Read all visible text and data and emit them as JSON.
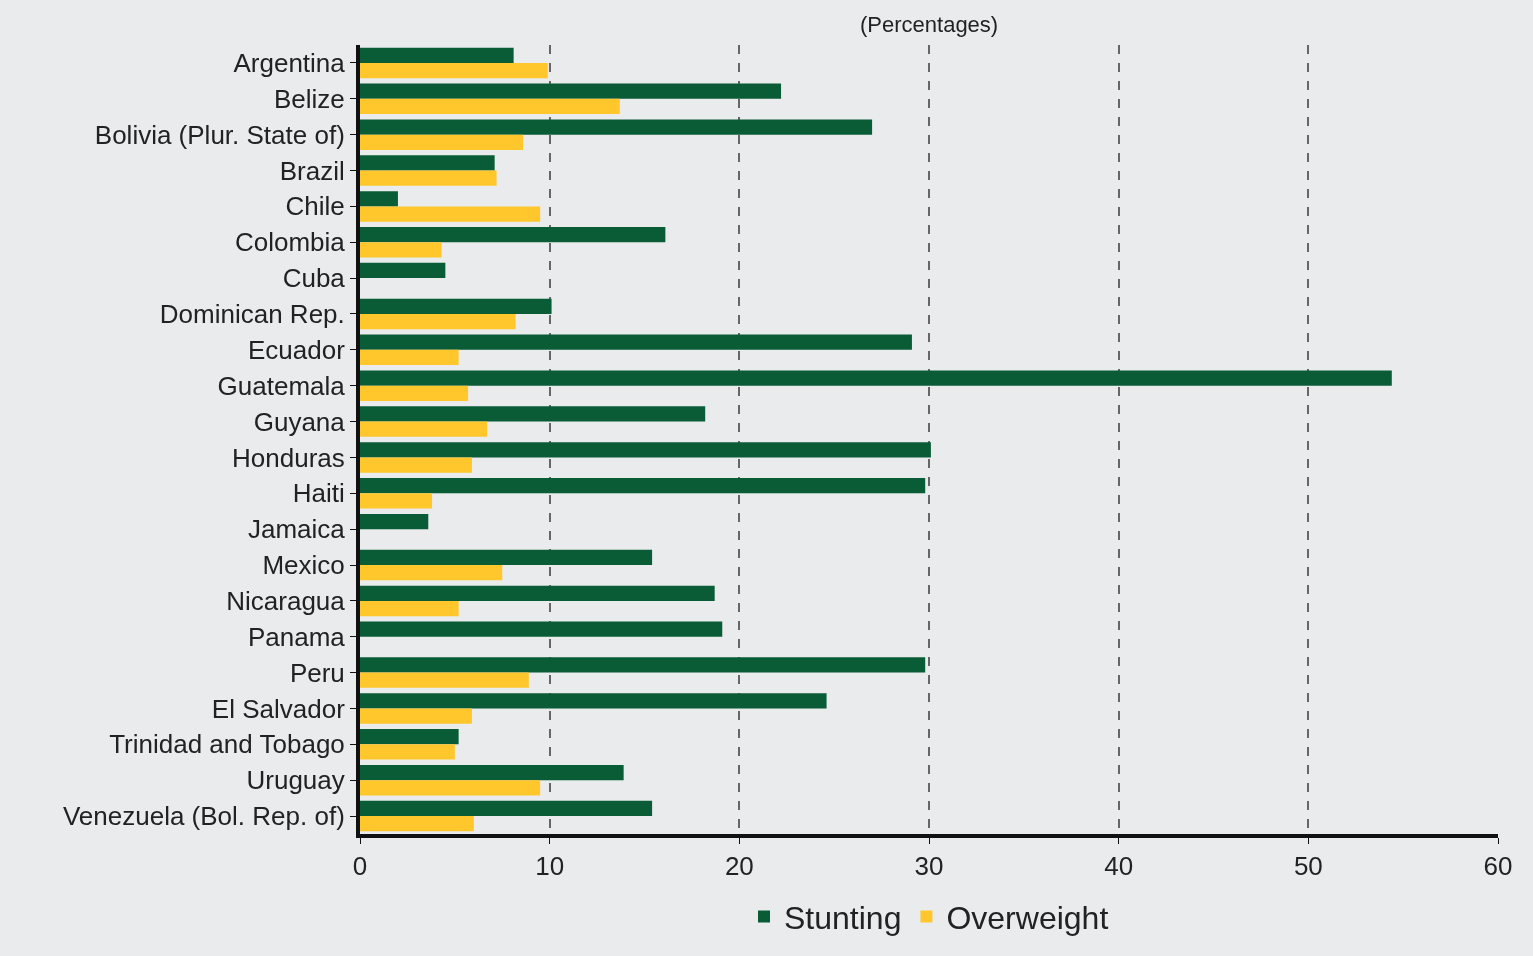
{
  "chart_data": {
    "type": "bar",
    "orientation": "horizontal",
    "subtitle": "(Percentages)",
    "categories": [
      "Argentina",
      "Belize",
      "Bolivia (Plur. State of)",
      "Brazil",
      "Chile",
      "Colombia",
      "Cuba",
      "Dominican Rep.",
      "Ecuador",
      "Guatemala",
      "Guyana",
      "Honduras",
      "Haiti",
      "Jamaica",
      "Mexico",
      "Nicaragua",
      "Panama",
      "Peru",
      "El Salvador",
      "Trinidad and Tobago",
      "Uruguay",
      "Venezuela (Bol. Rep. of)"
    ],
    "series": [
      {
        "name": "Stunting",
        "color": "#0a5c36",
        "values": [
          8.1,
          22.2,
          27.0,
          7.1,
          2.0,
          16.1,
          4.5,
          10.1,
          29.1,
          54.4,
          18.2,
          30.1,
          29.8,
          3.6,
          15.4,
          18.7,
          19.1,
          29.8,
          24.6,
          5.2,
          13.9,
          15.4
        ]
      },
      {
        "name": "Overweight",
        "color": "#ffc72c",
        "values": [
          9.9,
          13.7,
          8.6,
          7.2,
          9.5,
          4.3,
          null,
          8.2,
          5.2,
          5.7,
          6.7,
          5.9,
          3.8,
          null,
          7.5,
          5.2,
          null,
          8.9,
          5.9,
          5.0,
          9.5,
          6.0
        ]
      }
    ],
    "xlim": [
      0,
      60
    ],
    "xticks": [
      0,
      10,
      20,
      30,
      40,
      50,
      60
    ],
    "grid": "x",
    "legend": "bottom"
  }
}
